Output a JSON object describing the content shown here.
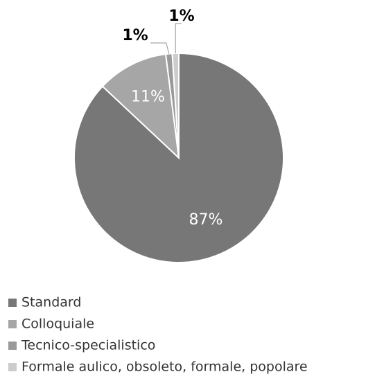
{
  "chart_data": {
    "type": "pie",
    "categories": [
      "Standard",
      "Colloquiale",
      "Tecnico-specialistico",
      "Formale aulico, obsoleto, formale, popolare"
    ],
    "values": [
      87,
      11,
      1,
      1
    ],
    "value_labels": [
      "87%",
      "11%",
      "1%",
      "1%"
    ],
    "colors": [
      "#777777",
      "#a6a6a6",
      "#9a9a9a",
      "#cccccc"
    ]
  }
}
